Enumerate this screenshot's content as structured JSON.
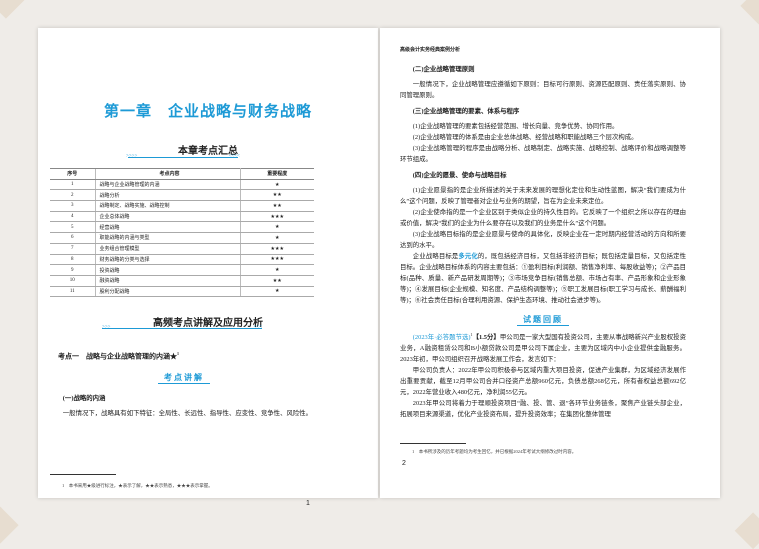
{
  "left": {
    "chapter_title": "第一章　企业战略与财务战略",
    "summary_title": "本章考点汇总",
    "table": {
      "headers": [
        "序号",
        "考点内容",
        "重要程度"
      ],
      "rows": [
        [
          "1",
          "战略与企业战略管理的内涵",
          "★"
        ],
        [
          "2",
          "战略分析",
          "★★"
        ],
        [
          "3",
          "战略制定、战略实施、战略控制",
          "★★"
        ],
        [
          "4",
          "企业总体战略",
          "★★★"
        ],
        [
          "5",
          "经营战略",
          "★"
        ],
        [
          "6",
          "职能战略的内涵与类型",
          "★"
        ],
        [
          "7",
          "业务组合管理模型",
          "★★★"
        ],
        [
          "8",
          "财务战略的分类与选择",
          "★★★"
        ],
        [
          "9",
          "投资战略",
          "★"
        ],
        [
          "10",
          "融资战略",
          "★★"
        ],
        [
          "11",
          "股利分配战略",
          "★"
        ]
      ]
    },
    "section_title": "高频考点讲解及应用分析",
    "point_title": "考点一　战略与企业战略管理的内涵★",
    "point_footnote_mark": "1",
    "sub_title": "考点讲解",
    "h_1": "(一)战略的内涵",
    "p_1": "一般情况下，战略具有如下特征：全局性、长远性、指导性、应变性、竞争性、风险性。",
    "footnote": "1　本书采用★级进行标注，★表示了解，★★表示熟悉，★★★表示掌握。",
    "page_number": "1"
  },
  "right": {
    "running_header": "高级会计实务经典案例分析",
    "h_2": "(二)企业战略管理原则",
    "p_2": "一般情况下，企业战略管理应遵循如下原则：目标可行原则、资源匹配原则、责任落实原则、协同管理原则。",
    "h_3": "(三)企业战略管理的要素、体系与程序",
    "p_3_1": "(1)企业战略管理的要素包括经营范围、增长向量、竞争优势、协同作用。",
    "p_3_2": "(2)企业战略管理的体系是由企业总体战略、经营战略和职能战略三个层次构成。",
    "p_3_3": "(3)企业战略管理的程序是由战略分析、战略制定、战略实施、战略控制、战略评价和战略调整等环节组成。",
    "h_4": "(四)企业的愿景、使命与战略目标",
    "p_4_1": "(1)企业愿景指的是企业所描述的关于未来发展的理想化定位和生动性蓝图，解决“我们要成为什么”这个问题，反映了管理者对企业与业务的期望，旨在为企业未来定位。",
    "p_4_2": "(2)企业使命指的是一个企业区别于类似企业的持久性目的。它反映了一个组织之所以存在的理由或价值，解决“我们的企业为什么要存在以及我们的业务是什么”这个问题。",
    "p_4_3": "(3)企业战略目标指的是企业愿景与使命的具体化，反映企业在一定时期内经营活动的方向和所要达到的水平。",
    "p_5_a": "企业战略目标是",
    "p_5_hl": "多元化",
    "p_5_b": "的，既包括经济目标，又包括非经济目标；既包括定量目标，又包括定性目标。企业战略目标体系的内容主要包括：①盈利目标(利润额、销售净利率、每股收益等)；②产品目标(品种、质量、新产品研发周期等)；③市场竞争目标(销售总额、市场占有率、产品形象和企业形象等)；④发展目标(企业规模、知名度、产品结构调整等)；⑤职工发展目标(职工学习与成长、薪酬福利等)；⑥社会责任目标(合理利用资源、保护生态环境、推动社会进步等)。",
    "sub_title": "试题回顾",
    "q_tag": "(2023年·必答题节选)",
    "q_mark": "1",
    "q_score": "【1.5分】",
    "q_1": "甲公司是一家大型国有投资公司，主要从事战略新兴产业股权投资业务，A融资租赁公司和B小额贷款公司是甲公司下属企业，主要为区域内中小企业提供金融服务。2023年初，甲公司组织召开战略发展工作会，发言如下：",
    "q_2": "甲公司负责人：2022年甲公司积极参与区域内重大项目投资，促进产业集群，为区域经济发展作出重要贡献，截至12月甲公司合并口径资产总额960亿元，负债总额268亿元，所有者权益总额692亿元，2022年营业收入480亿元，净利润55亿元。",
    "q_3": "2023年甲公司将着力于理顺投资项目“融、投、管、退”各环节业务链条，聚焦产业链头部企业，拓展项目来源渠道，优化产业投资布局，提升投资效率；在集团化整体管理",
    "footnote": "1　本书所涉及的历年考题均为考生回忆，并已根据2024年考试大纲修改过时内容。",
    "page_number": "2"
  },
  "colors": {
    "accent": "#1d9ad6"
  }
}
